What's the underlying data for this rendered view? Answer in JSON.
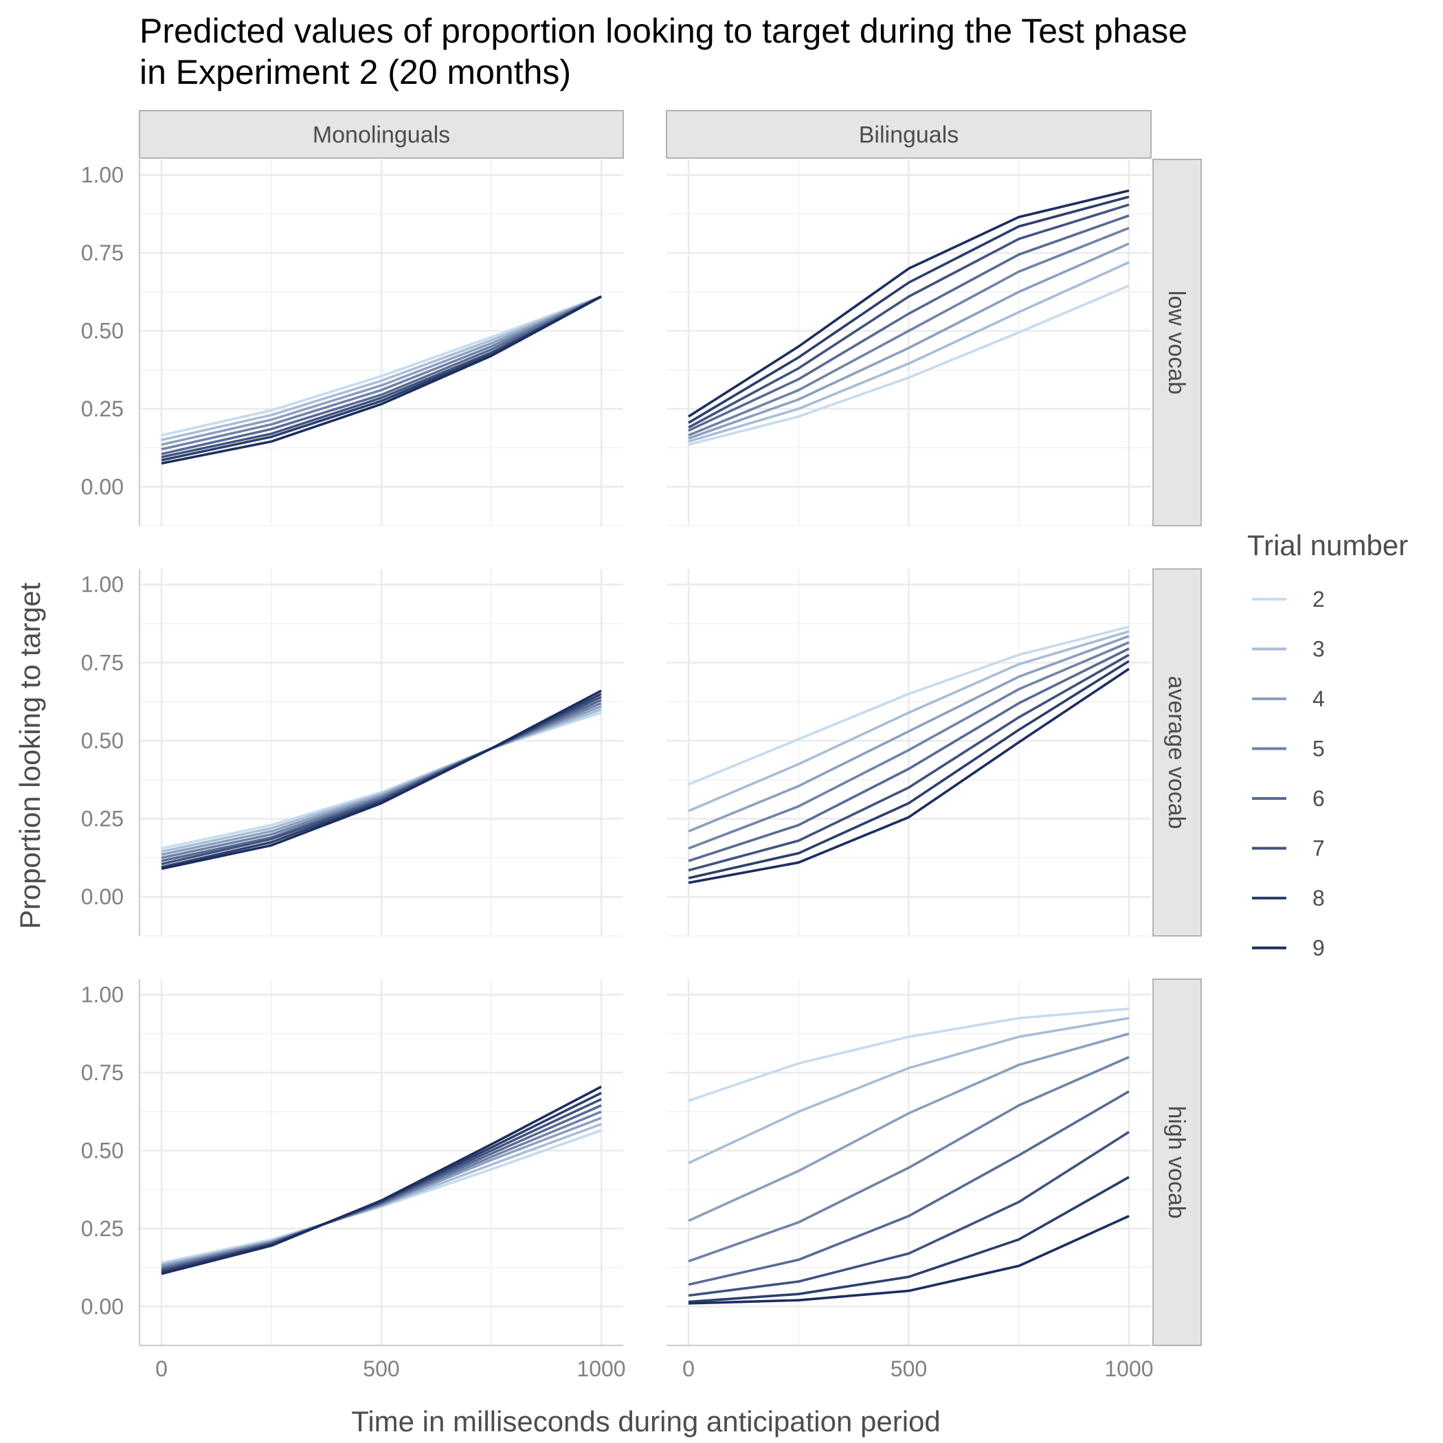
{
  "chart_data": {
    "type": "line",
    "title": [
      "Predicted values of proportion looking to target during the Test phase",
      "in Experiment 2 (20 months)"
    ],
    "xlabel": "Time in milliseconds during anticipation period",
    "ylabel": "Proportion looking to target",
    "xlim": [
      -50,
      1050
    ],
    "ylim": [
      -0.125,
      1.05
    ],
    "x_ticks": [
      0,
      500,
      1000
    ],
    "x_tick_labels": [
      "0",
      "500",
      "1000"
    ],
    "y_ticks": [
      0,
      0.25,
      0.5,
      0.75,
      1.0
    ],
    "y_tick_labels": [
      "0.00",
      "0.25",
      "0.50",
      "0.75",
      "1.00"
    ],
    "grid": true,
    "legend": {
      "title": "Trial number",
      "placement": "right",
      "entries": [
        "2",
        "3",
        "4",
        "5",
        "6",
        "7",
        "8",
        "9"
      ],
      "colors": [
        "#c6dbef",
        "#a9bdd6",
        "#8ca0bf",
        "#7083a8",
        "#586b94",
        "#41537f",
        "#2c3f6d",
        "#1c2e5f"
      ]
    },
    "facet_columns": [
      "Monolinguals",
      "Bilinguals"
    ],
    "facet_rows": [
      "low vocab",
      "average vocab",
      "high vocab"
    ],
    "x": [
      0,
      250,
      500,
      750,
      1000
    ],
    "panels": [
      {
        "column": "Monolinguals",
        "row": "low vocab",
        "series": [
          {
            "name": "2",
            "values": [
              0.165,
              0.245,
              0.355,
              0.48,
              0.61
            ]
          },
          {
            "name": "3",
            "values": [
              0.15,
              0.23,
              0.34,
              0.47,
              0.61
            ]
          },
          {
            "name": "4",
            "values": [
              0.135,
              0.215,
              0.325,
              0.46,
              0.61
            ]
          },
          {
            "name": "5",
            "values": [
              0.12,
              0.2,
              0.31,
              0.45,
              0.61
            ]
          },
          {
            "name": "6",
            "values": [
              0.105,
              0.185,
              0.295,
              0.44,
              0.61
            ]
          },
          {
            "name": "7",
            "values": [
              0.095,
              0.17,
              0.285,
              0.43,
              0.61
            ]
          },
          {
            "name": "8",
            "values": [
              0.085,
              0.16,
              0.275,
              0.425,
              0.61
            ]
          },
          {
            "name": "9",
            "values": [
              0.075,
              0.145,
              0.265,
              0.42,
              0.61
            ]
          }
        ]
      },
      {
        "column": "Bilinguals",
        "row": "low vocab",
        "series": [
          {
            "name": "2",
            "values": [
              0.135,
              0.225,
              0.35,
              0.495,
              0.645
            ]
          },
          {
            "name": "3",
            "values": [
              0.145,
              0.25,
              0.395,
              0.56,
              0.72
            ]
          },
          {
            "name": "4",
            "values": [
              0.155,
              0.28,
              0.445,
              0.625,
              0.78
            ]
          },
          {
            "name": "5",
            "values": [
              0.165,
              0.31,
              0.5,
              0.69,
              0.83
            ]
          },
          {
            "name": "6",
            "values": [
              0.18,
              0.345,
              0.555,
              0.745,
              0.87
            ]
          },
          {
            "name": "7",
            "values": [
              0.19,
              0.38,
              0.61,
              0.795,
              0.905
            ]
          },
          {
            "name": "8",
            "values": [
              0.205,
              0.415,
              0.655,
              0.835,
              0.93
            ]
          },
          {
            "name": "9",
            "values": [
              0.225,
              0.45,
              0.7,
              0.865,
              0.95
            ]
          }
        ]
      },
      {
        "column": "Monolinguals",
        "row": "average vocab",
        "series": [
          {
            "name": "2",
            "values": [
              0.155,
              0.23,
              0.335,
              0.475,
              0.59
            ]
          },
          {
            "name": "3",
            "values": [
              0.145,
              0.22,
              0.33,
              0.475,
              0.6
            ]
          },
          {
            "name": "4",
            "values": [
              0.135,
              0.21,
              0.325,
              0.475,
              0.61
            ]
          },
          {
            "name": "5",
            "values": [
              0.125,
              0.2,
              0.32,
              0.475,
              0.62
            ]
          },
          {
            "name": "6",
            "values": [
              0.115,
              0.19,
              0.315,
              0.475,
              0.63
            ]
          },
          {
            "name": "7",
            "values": [
              0.105,
              0.185,
              0.31,
              0.475,
              0.64
            ]
          },
          {
            "name": "8",
            "values": [
              0.095,
              0.175,
              0.305,
              0.475,
              0.65
            ]
          },
          {
            "name": "9",
            "values": [
              0.09,
              0.165,
              0.3,
              0.475,
              0.66
            ]
          }
        ]
      },
      {
        "column": "Bilinguals",
        "row": "average vocab",
        "series": [
          {
            "name": "2",
            "values": [
              0.36,
              0.505,
              0.65,
              0.775,
              0.865
            ]
          },
          {
            "name": "3",
            "values": [
              0.275,
              0.425,
              0.59,
              0.745,
              0.85
            ]
          },
          {
            "name": "4",
            "values": [
              0.21,
              0.355,
              0.53,
              0.705,
              0.835
            ]
          },
          {
            "name": "5",
            "values": [
              0.155,
              0.29,
              0.47,
              0.665,
              0.815
            ]
          },
          {
            "name": "6",
            "values": [
              0.115,
              0.23,
              0.41,
              0.62,
              0.795
            ]
          },
          {
            "name": "7",
            "values": [
              0.085,
              0.18,
              0.35,
              0.575,
              0.775
            ]
          },
          {
            "name": "8",
            "values": [
              0.06,
              0.14,
              0.3,
              0.535,
              0.755
            ]
          },
          {
            "name": "9",
            "values": [
              0.045,
              0.11,
              0.255,
              0.495,
              0.73
            ]
          }
        ]
      },
      {
        "column": "Monolinguals",
        "row": "high vocab",
        "series": [
          {
            "name": "2",
            "values": [
              0.14,
              0.215,
              0.32,
              0.44,
              0.565
            ]
          },
          {
            "name": "3",
            "values": [
              0.135,
              0.21,
              0.323,
              0.455,
              0.585
            ]
          },
          {
            "name": "4",
            "values": [
              0.13,
              0.208,
              0.326,
              0.47,
              0.605
            ]
          },
          {
            "name": "5",
            "values": [
              0.125,
              0.205,
              0.329,
              0.48,
              0.625
            ]
          },
          {
            "name": "6",
            "values": [
              0.12,
              0.203,
              0.332,
              0.49,
              0.645
            ]
          },
          {
            "name": "7",
            "values": [
              0.115,
              0.2,
              0.335,
              0.5,
              0.665
            ]
          },
          {
            "name": "8",
            "values": [
              0.11,
              0.198,
              0.338,
              0.51,
              0.685
            ]
          },
          {
            "name": "9",
            "values": [
              0.105,
              0.195,
              0.34,
              0.52,
              0.705
            ]
          }
        ]
      },
      {
        "column": "Bilinguals",
        "row": "high vocab",
        "series": [
          {
            "name": "2",
            "values": [
              0.66,
              0.78,
              0.865,
              0.925,
              0.955
            ]
          },
          {
            "name": "3",
            "values": [
              0.46,
              0.625,
              0.765,
              0.865,
              0.925
            ]
          },
          {
            "name": "4",
            "values": [
              0.275,
              0.435,
              0.62,
              0.775,
              0.875
            ]
          },
          {
            "name": "5",
            "values": [
              0.145,
              0.27,
              0.445,
              0.645,
              0.8
            ]
          },
          {
            "name": "6",
            "values": [
              0.07,
              0.15,
              0.29,
              0.485,
              0.69
            ]
          },
          {
            "name": "7",
            "values": [
              0.035,
              0.08,
              0.17,
              0.335,
              0.56
            ]
          },
          {
            "name": "8",
            "values": [
              0.015,
              0.04,
              0.095,
              0.215,
              0.415
            ]
          },
          {
            "name": "9",
            "values": [
              0.01,
              0.02,
              0.05,
              0.13,
              0.29
            ]
          }
        ]
      }
    ]
  }
}
